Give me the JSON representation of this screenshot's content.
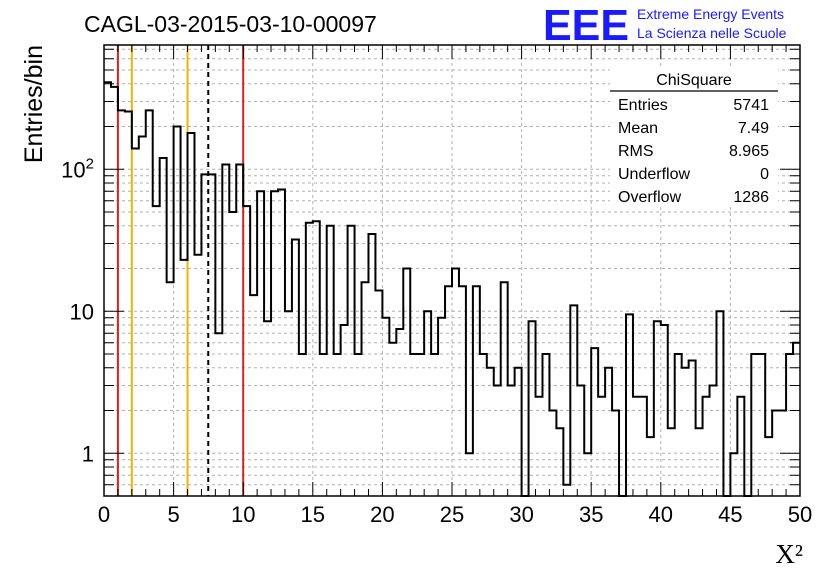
{
  "title": "CAGL-03-2015-03-10-00097",
  "logo": {
    "mark": "EEE",
    "line1": "Extreme Energy Events",
    "line2": "La Scienza nelle Scuole",
    "color": "#1a1aff"
  },
  "stats_box": {
    "title": "ChiSquare",
    "rows": [
      {
        "label": "Entries",
        "value": "5741"
      },
      {
        "label": "Mean",
        "value": "7.49"
      },
      {
        "label": "RMS",
        "value": "8.965"
      },
      {
        "label": "Underflow",
        "value": "0"
      },
      {
        "label": "Overflow",
        "value": "1286"
      }
    ]
  },
  "chart_data": {
    "type": "histogram",
    "xlabel": "X²",
    "ylabel": "Entries/bin",
    "xlim": [
      0,
      50
    ],
    "ylim": [
      0.5,
      750
    ],
    "y_scale": "log",
    "grid": true,
    "bin_width": 0.5,
    "x_ticks": [
      "0",
      "5",
      "10",
      "15",
      "20",
      "25",
      "30",
      "35",
      "40",
      "45",
      "50"
    ],
    "y_ticks": [
      {
        "value": 1,
        "label": "1"
      },
      {
        "value": 10,
        "label": "10"
      },
      {
        "value": 100,
        "label": "10^2"
      }
    ],
    "bin_values": [
      410,
      380,
      260,
      255,
      140,
      170,
      260,
      55,
      120,
      16,
      200,
      23,
      180,
      25,
      92,
      92,
      7,
      108,
      50,
      108,
      55,
      13,
      70,
      8.5,
      70,
      72,
      10,
      32,
      5,
      42,
      43,
      5,
      40,
      5,
      8,
      40,
      5,
      16,
      35,
      14,
      9,
      6,
      7.5,
      20,
      5,
      5,
      10,
      5,
      9,
      15,
      20,
      15,
      1,
      15,
      5,
      4,
      3,
      16,
      3,
      4,
      0.5,
      8.5,
      2.5,
      5,
      2,
      1.5,
      0.6,
      11,
      3,
      1,
      5.5,
      2.5,
      4,
      2,
      0.5,
      9.5,
      2.5,
      2.5,
      1.3,
      8.5,
      8,
      1.5,
      5,
      4,
      4.5,
      1.5,
      2.5,
      3,
      10,
      0.5,
      1,
      2.5,
      0.5,
      5,
      5,
      1.3,
      2,
      2,
      5,
      6
    ],
    "vertical_lines": [
      {
        "x": 1,
        "color": "#e02020",
        "style": "solid"
      },
      {
        "x": 2,
        "color": "#f0b400",
        "style": "solid"
      },
      {
        "x": 6,
        "color": "#f0b400",
        "style": "solid"
      },
      {
        "x": 7.49,
        "color": "#000000",
        "style": "dashed"
      },
      {
        "x": 10,
        "color": "#e02020",
        "style": "solid"
      }
    ]
  }
}
